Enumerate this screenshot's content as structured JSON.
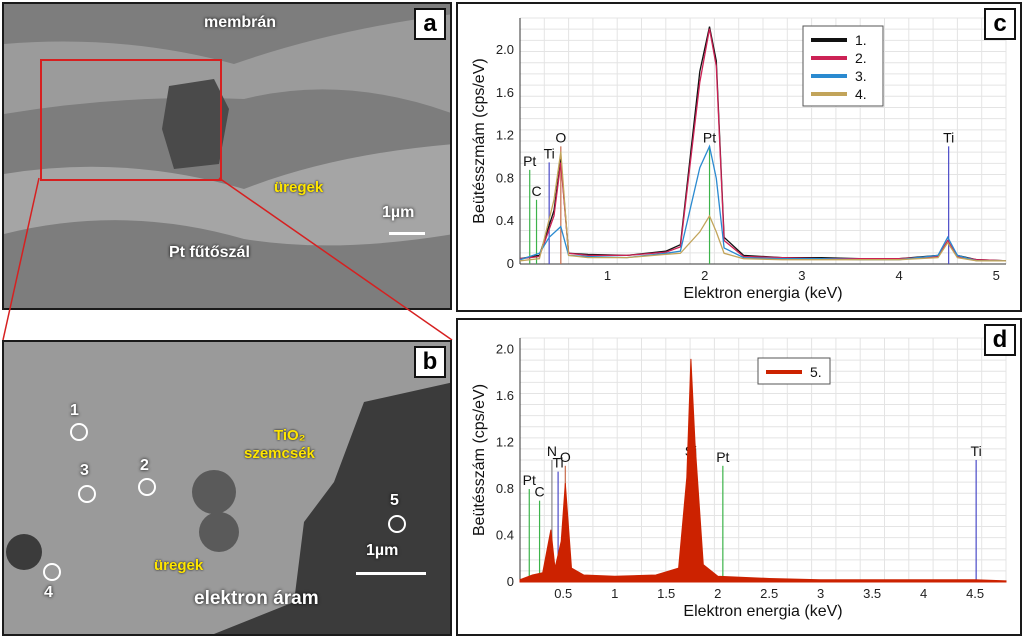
{
  "panels": {
    "a": {
      "letter": "a",
      "labels": {
        "membrane": "membrán",
        "cavities": "üregek",
        "filament": "Pt fűtőszál",
        "scale": "1µm"
      }
    },
    "b": {
      "letter": "b",
      "labels": {
        "tio2_line1": "TiO₂",
        "tio2_line2": "szemcsék",
        "cavities": "üregek",
        "scale": "1µm",
        "electron": "elektron áram"
      },
      "points": [
        "1",
        "2",
        "3",
        "4",
        "5"
      ]
    },
    "c": {
      "letter": "c"
    },
    "d": {
      "letter": "d"
    }
  },
  "colors": {
    "s1": "#111111",
    "s2": "#cc2255",
    "s3": "#2a8ad0",
    "s4": "#c2a45a",
    "s5": "#cc2200",
    "Pt": "#3cb34a",
    "C": "#3cb34a",
    "Ti": "#4a4ac8",
    "O": "#c86a4a"
  },
  "chart_data": [
    {
      "type": "line",
      "panel": "c",
      "xlabel": "Elektron energia (keV)",
      "ylabel": "Beütésszmám (cps/eV)",
      "xlim": [
        0.1,
        5.1
      ],
      "ylim": [
        0,
        2.3
      ],
      "x_ticks": [
        1,
        2,
        3,
        4,
        5
      ],
      "y_ticks": [
        0,
        0.4,
        0.8,
        1.2,
        1.6,
        2.0
      ],
      "grid": true,
      "legend": {
        "placement": "top-right",
        "entries": [
          "1.",
          "2.",
          "3.",
          "4."
        ]
      },
      "element_markers": [
        {
          "label": "Pt",
          "x": 0.2,
          "height": 0.88
        },
        {
          "label": "C",
          "x": 0.27,
          "height": 0.6
        },
        {
          "label": "Ti",
          "x": 0.4,
          "height": 0.95
        },
        {
          "label": "O",
          "x": 0.52,
          "height": 1.1
        },
        {
          "label": "Pt",
          "x": 2.05,
          "height": 1.1
        },
        {
          "label": "Ti",
          "x": 4.51,
          "height": 1.1
        }
      ],
      "series": [
        {
          "name": "1.",
          "color_key": "s1",
          "x": [
            0.1,
            0.3,
            0.45,
            0.52,
            0.6,
            0.8,
            1.2,
            1.6,
            1.75,
            1.95,
            2.05,
            2.12,
            2.2,
            2.4,
            2.8,
            3.2,
            3.6,
            4.0,
            4.4,
            4.5,
            4.6,
            4.8,
            5.1
          ],
          "y": [
            0.05,
            0.08,
            0.5,
            0.98,
            0.1,
            0.09,
            0.08,
            0.12,
            0.18,
            1.8,
            2.22,
            1.9,
            0.25,
            0.08,
            0.06,
            0.06,
            0.05,
            0.05,
            0.08,
            0.2,
            0.08,
            0.04,
            0.03
          ]
        },
        {
          "name": "2.",
          "color_key": "s2",
          "x": [
            0.1,
            0.3,
            0.45,
            0.52,
            0.6,
            0.8,
            1.2,
            1.6,
            1.75,
            1.95,
            2.05,
            2.12,
            2.2,
            2.4,
            2.8,
            3.2,
            3.6,
            4.0,
            4.4,
            4.5,
            4.6,
            4.8,
            5.1
          ],
          "y": [
            0.05,
            0.07,
            0.45,
            0.95,
            0.1,
            0.08,
            0.08,
            0.11,
            0.16,
            1.7,
            2.2,
            1.85,
            0.22,
            0.07,
            0.06,
            0.05,
            0.05,
            0.05,
            0.07,
            0.22,
            0.07,
            0.04,
            0.03
          ]
        },
        {
          "name": "3.",
          "color_key": "s3",
          "x": [
            0.1,
            0.3,
            0.4,
            0.52,
            0.6,
            0.8,
            1.2,
            1.6,
            1.75,
            1.95,
            2.05,
            2.12,
            2.2,
            2.4,
            2.8,
            3.2,
            3.6,
            4.0,
            4.4,
            4.5,
            4.6,
            4.8,
            5.1
          ],
          "y": [
            0.04,
            0.1,
            0.25,
            0.35,
            0.08,
            0.07,
            0.06,
            0.1,
            0.12,
            0.9,
            1.1,
            0.8,
            0.15,
            0.06,
            0.05,
            0.05,
            0.04,
            0.04,
            0.08,
            0.25,
            0.08,
            0.03,
            0.03
          ]
        },
        {
          "name": "4.",
          "color_key": "s4",
          "x": [
            0.1,
            0.3,
            0.45,
            0.52,
            0.6,
            0.8,
            1.2,
            1.6,
            1.75,
            1.95,
            2.05,
            2.12,
            2.2,
            2.4,
            2.8,
            3.2,
            3.6,
            4.0,
            4.4,
            4.5,
            4.6,
            4.8,
            5.1
          ],
          "y": [
            0.03,
            0.05,
            0.6,
            1.05,
            0.08,
            0.06,
            0.06,
            0.09,
            0.1,
            0.3,
            0.45,
            0.3,
            0.1,
            0.05,
            0.04,
            0.04,
            0.04,
            0.04,
            0.06,
            0.2,
            0.06,
            0.03,
            0.03
          ]
        }
      ]
    },
    {
      "type": "area",
      "panel": "d",
      "xlabel": "Elektron energia (keV)",
      "ylabel": "Beütésszám (cps/eV)",
      "xlim": [
        0.08,
        4.8
      ],
      "ylim": [
        0,
        2.1
      ],
      "x_ticks": [
        0.5,
        1,
        1.5,
        2,
        2.5,
        3,
        3.5,
        4,
        4.5
      ],
      "x_tick_labels": [
        "0.5",
        "1",
        "1.5",
        "2",
        "2.5",
        "3",
        "3.5",
        "4",
        "4.5"
      ],
      "y_ticks": [
        0,
        0.4,
        0.8,
        1.2,
        1.6,
        2.0
      ],
      "grid": true,
      "legend": {
        "placement": "top-left",
        "entries": [
          "5."
        ]
      },
      "element_markers": [
        {
          "label": "Pt",
          "x": 0.17,
          "height": 0.8
        },
        {
          "label": "C",
          "x": 0.27,
          "height": 0.7
        },
        {
          "label": "N",
          "x": 0.39,
          "height": 1.05
        },
        {
          "label": "Ti",
          "x": 0.45,
          "height": 0.95
        },
        {
          "label": "O",
          "x": 0.52,
          "height": 1.0
        },
        {
          "label": "Si",
          "x": 1.74,
          "height": 1.05
        },
        {
          "label": "Pt",
          "x": 2.05,
          "height": 1.0
        },
        {
          "label": "Ti",
          "x": 4.51,
          "height": 1.05
        }
      ],
      "series": [
        {
          "name": "5.",
          "color_key": "s5",
          "x": [
            0.08,
            0.2,
            0.3,
            0.38,
            0.42,
            0.48,
            0.52,
            0.58,
            0.7,
            1.0,
            1.4,
            1.62,
            1.7,
            1.74,
            1.78,
            1.86,
            2.0,
            2.5,
            3.0,
            3.5,
            4.0,
            4.5,
            4.8
          ],
          "y": [
            0.02,
            0.06,
            0.08,
            0.45,
            0.12,
            0.35,
            0.85,
            0.12,
            0.06,
            0.05,
            0.06,
            0.12,
            0.9,
            1.92,
            1.2,
            0.15,
            0.05,
            0.03,
            0.02,
            0.02,
            0.02,
            0.02,
            0.01
          ]
        }
      ]
    }
  ]
}
